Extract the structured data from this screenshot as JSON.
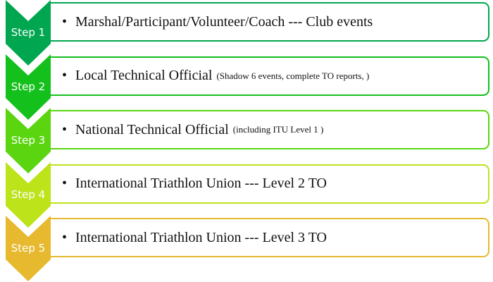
{
  "steps": [
    {
      "label": "Step 1",
      "text": "Marshal/Participant/Volunteer/Coach --- Club events",
      "note": "",
      "color": "#00a650"
    },
    {
      "label": "Step 2",
      "text": "Local Technical Official",
      "note": "(Shadow 6 events, complete TO reports, )",
      "color": "#14c01c"
    },
    {
      "label": "Step 3",
      "text": "National Technical Official",
      "note": "(including ITU Level 1 )",
      "color": "#5ad510"
    },
    {
      "label": "Step 4",
      "text": "International Triathlon Union --- Level 2 TO",
      "note": "",
      "color": "#bde31b"
    },
    {
      "label": "Step 5",
      "text": "International Triathlon Union --- Level 3 TO",
      "note": "",
      "color": "#e6b92e"
    }
  ]
}
